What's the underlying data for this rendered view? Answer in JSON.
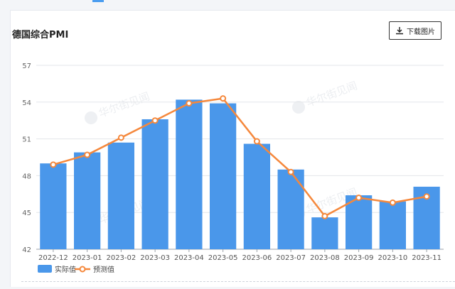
{
  "header": {
    "title": "德国综合PMI",
    "download_label": "下载图片"
  },
  "watermark": "华尔街见闻",
  "colors": {
    "bar": "#4a97ea",
    "line": "#f5883c",
    "grid": "#e3e6ea",
    "axis": "#9aa0a8"
  },
  "chart_data": {
    "type": "bar",
    "title": "德国综合PMI",
    "categories": [
      "2022-12",
      "2023-01",
      "2023-02",
      "2023-03",
      "2023-04",
      "2023-05",
      "2023-06",
      "2023-07",
      "2023-08",
      "2023-09",
      "2023-10",
      "2023-11"
    ],
    "ylim": [
      42,
      57
    ],
    "yticks": [
      42,
      45,
      48,
      51,
      54,
      57
    ],
    "grid": true,
    "legend_position": "bottom-left",
    "series": [
      {
        "name": "实际值",
        "type": "bar",
        "values": [
          49.0,
          49.9,
          50.7,
          52.6,
          54.2,
          53.9,
          50.6,
          48.5,
          44.6,
          46.4,
          45.9,
          47.1
        ]
      },
      {
        "name": "预测值",
        "type": "line",
        "values": [
          48.9,
          49.7,
          51.1,
          52.5,
          53.9,
          54.3,
          50.8,
          48.3,
          44.7,
          46.2,
          45.8,
          46.3
        ]
      }
    ]
  }
}
